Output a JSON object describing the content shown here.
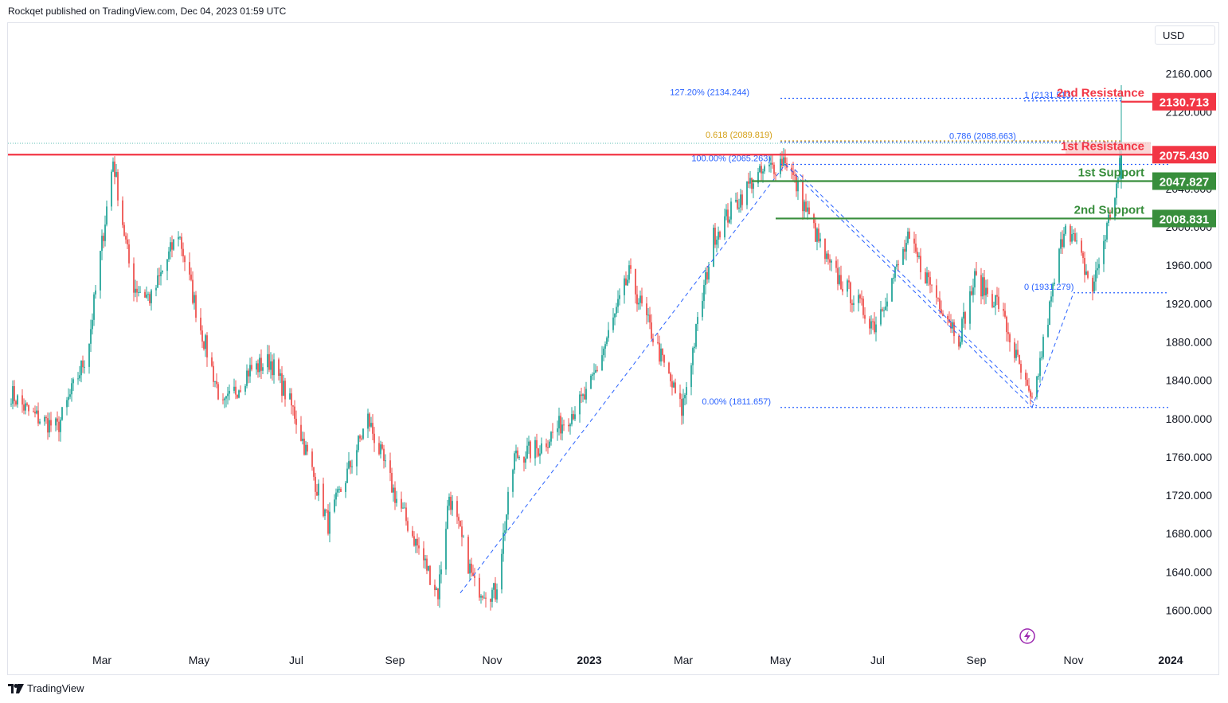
{
  "header": {
    "publisher": "Rockqet published on TradingView.com, Dec 04, 2023 01:59 UTC"
  },
  "footer": {
    "brand": "TradingView"
  },
  "currency": "USD",
  "colors": {
    "up": "#26a69a",
    "down": "#ef5350",
    "resistance": "#f23645",
    "support": "#388e3c",
    "fib": "#2962ff",
    "fib_gold": "#d4a017"
  },
  "chart_data": {
    "type": "candlestick",
    "yaxis": {
      "range": [
        1570,
        2180
      ],
      "ticks": [
        "1600.000",
        "1640.000",
        "1680.000",
        "1720.000",
        "1760.000",
        "1800.000",
        "1840.000",
        "1880.000",
        "1920.000",
        "1960.000",
        "2000.000",
        "2040.000",
        "2080.000",
        "2120.000",
        "2160.000"
      ]
    },
    "xaxis": {
      "labels": [
        {
          "label": "Mar",
          "bold": false
        },
        {
          "label": "May",
          "bold": false
        },
        {
          "label": "Jul",
          "bold": false
        },
        {
          "label": "Sep",
          "bold": false
        },
        {
          "label": "Nov",
          "bold": false
        },
        {
          "label": "2023",
          "bold": true
        },
        {
          "label": "Mar",
          "bold": false
        },
        {
          "label": "May",
          "bold": false
        },
        {
          "label": "Jul",
          "bold": false
        },
        {
          "label": "Sep",
          "bold": false
        },
        {
          "label": "Nov",
          "bold": false
        },
        {
          "label": "2024",
          "bold": true
        }
      ]
    },
    "swing_path": [
      [
        "2022-01-01",
        1830
      ],
      [
        "2022-01-15",
        1805
      ],
      [
        "2022-02-01",
        1790
      ],
      [
        "2022-02-20",
        1870
      ],
      [
        "2022-03-08",
        2070
      ],
      [
        "2022-03-20",
        1940
      ],
      [
        "2022-04-01",
        1925
      ],
      [
        "2022-04-18",
        1995
      ],
      [
        "2022-05-01",
        1900
      ],
      [
        "2022-05-16",
        1810
      ],
      [
        "2022-06-01",
        1850
      ],
      [
        "2022-06-15",
        1860
      ],
      [
        "2022-06-30",
        1805
      ],
      [
        "2022-07-21",
        1690
      ],
      [
        "2022-08-15",
        1800
      ],
      [
        "2022-09-01",
        1720
      ],
      [
        "2022-09-28",
        1618
      ],
      [
        "2022-10-05",
        1720
      ],
      [
        "2022-10-21",
        1625
      ],
      [
        "2022-11-03",
        1618
      ],
      [
        "2022-11-15",
        1760
      ],
      [
        "2022-12-01",
        1770
      ],
      [
        "2022-12-31",
        1825
      ],
      [
        "2023-01-26",
        1950
      ],
      [
        "2023-02-28",
        1808
      ],
      [
        "2023-03-20",
        1990
      ],
      [
        "2023-04-13",
        2048
      ],
      [
        "2023-05-04",
        2072
      ],
      [
        "2023-05-31",
        1960
      ],
      [
        "2023-06-29",
        1898
      ],
      [
        "2023-07-20",
        1985
      ],
      [
        "2023-08-21",
        1885
      ],
      [
        "2023-08-31",
        1945
      ],
      [
        "2023-09-15",
        1920
      ],
      [
        "2023-10-06",
        1812
      ],
      [
        "2023-10-27",
        2008
      ],
      [
        "2023-11-13",
        1935
      ],
      [
        "2023-11-29",
        2050
      ],
      [
        "2023-12-01",
        2075
      ]
    ],
    "last_candle": {
      "date": "2023-12-01",
      "open": 2050,
      "high": 2148,
      "low": 2040,
      "close": 2075
    },
    "levels": [
      {
        "name": "2nd Resistance",
        "value": 2130.713,
        "label": "2130.713",
        "kind": "resistance"
      },
      {
        "name": "1st Resistance",
        "value": 2075.43,
        "label": "2075.430",
        "kind": "resistance"
      },
      {
        "name": "1st Support",
        "value": 2047.827,
        "label": "2047.827",
        "kind": "support"
      },
      {
        "name": "2nd Support",
        "value": 2008.831,
        "label": "2008.831",
        "kind": "support"
      }
    ],
    "fib_labels": [
      {
        "text": "127.20% (2134.244)",
        "value": 2134.244
      },
      {
        "text": "1 (2131.513)",
        "value": 2131.513
      },
      {
        "text": "0.618 (2089.819)",
        "value": 2089.819,
        "gold": true
      },
      {
        "text": "0.786 (2088.663)",
        "value": 2088.663
      },
      {
        "text": "100.00% (2065.263)",
        "value": 2065.263
      },
      {
        "text": "0 (1931.279)",
        "value": 1931.279
      },
      {
        "text": "0.00% (1811.657)",
        "value": 1811.657
      }
    ]
  }
}
